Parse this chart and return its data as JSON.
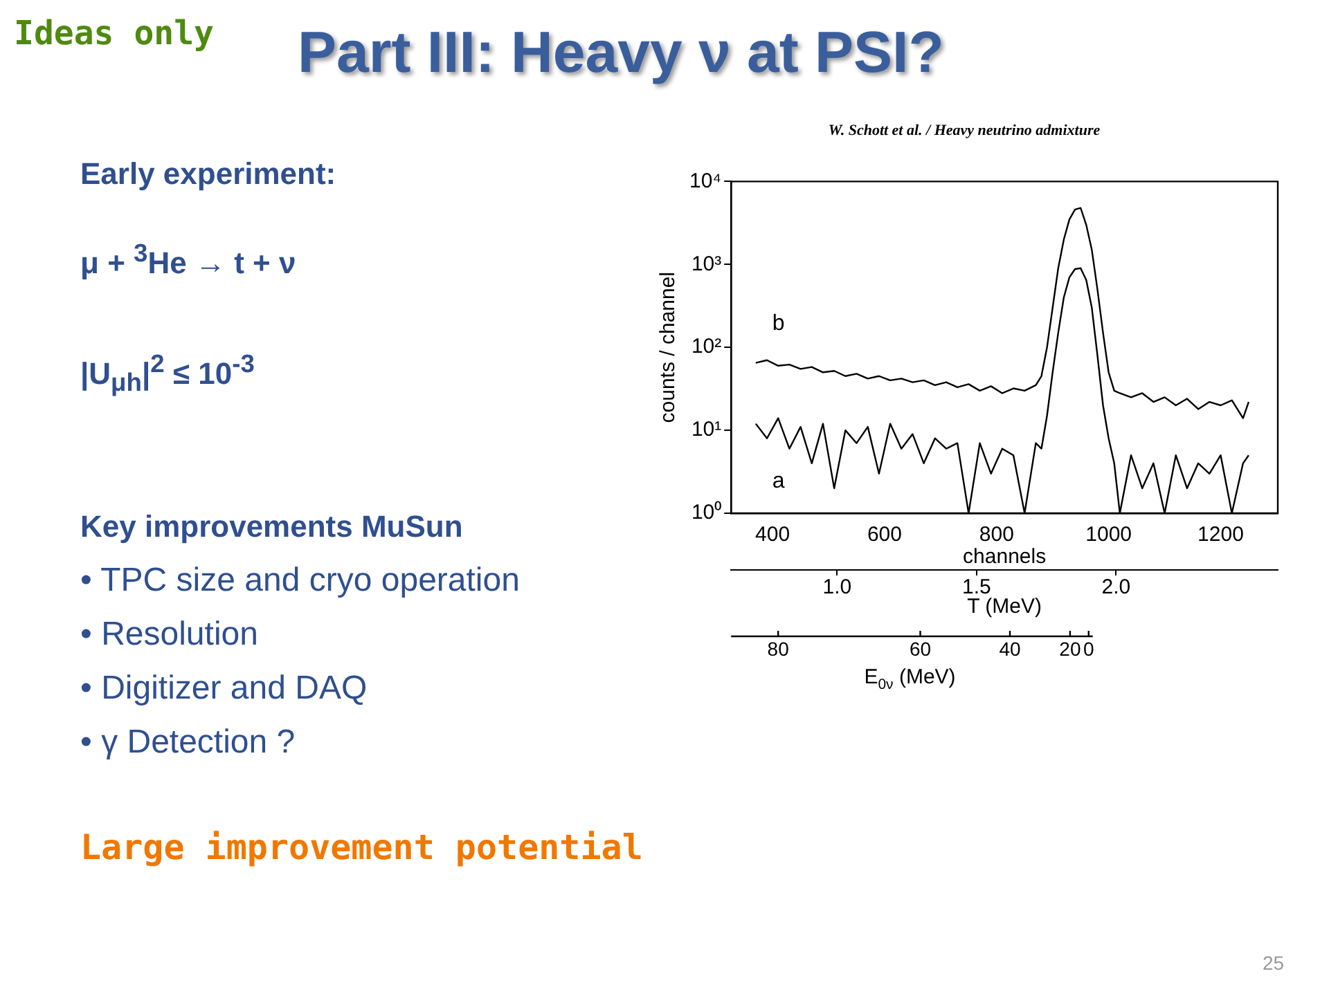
{
  "chart_data": {
    "type": "line",
    "title": "Part III: Heavy ν at PSI?",
    "subtitle": "W. Schott et al. / Heavy neutrino admixture",
    "xlabel": "channels",
    "ylabel": "counts / channel",
    "x2label": "T (MeV)",
    "x": [
      370,
      390,
      410,
      430,
      450,
      470,
      490,
      510,
      530,
      550,
      570,
      590,
      610,
      630,
      650,
      670,
      690,
      710,
      730,
      750,
      770,
      790,
      810,
      830,
      850,
      870,
      880,
      890,
      900,
      910,
      920,
      930,
      940,
      950,
      960,
      970,
      980,
      990,
      1000,
      1010,
      1020,
      1040,
      1060,
      1080,
      1100,
      1120,
      1140,
      1160,
      1180,
      1200,
      1220,
      1240,
      1250
    ],
    "series": [
      {
        "name": "b",
        "color": "#000000",
        "values": [
          65,
          70,
          60,
          62,
          55,
          58,
          50,
          52,
          45,
          48,
          42,
          45,
          40,
          42,
          38,
          40,
          35,
          38,
          33,
          36,
          30,
          34,
          28,
          32,
          30,
          35,
          45,
          100,
          300,
          900,
          2000,
          3500,
          4600,
          4800,
          3000,
          1500,
          500,
          150,
          50,
          30,
          28,
          25,
          28,
          22,
          25,
          20,
          24,
          18,
          22,
          20,
          23,
          14,
          22
        ]
      },
      {
        "name": "a",
        "color": "#000000",
        "values": [
          12,
          8,
          14,
          6,
          11,
          4,
          12,
          2,
          10,
          7,
          11,
          3,
          12,
          6,
          9,
          4,
          8,
          6,
          7,
          1,
          7,
          3,
          6,
          5,
          1,
          7,
          6,
          15,
          50,
          150,
          400,
          700,
          880,
          900,
          650,
          300,
          80,
          20,
          8,
          4,
          1,
          5,
          2,
          4,
          1,
          5,
          2,
          4,
          3,
          5,
          1,
          4,
          5
        ]
      }
    ],
    "xlim": [
      326,
      1302
    ],
    "xticks": [
      400,
      600,
      800,
      1000,
      1200
    ],
    "x2lim": [
      0.62,
      2.58
    ],
    "x2ticks": [
      {
        "value": 1,
        "label": "1.0"
      },
      1.5,
      {
        "value": 2,
        "label": "2.0"
      }
    ],
    "ylim": [
      1,
      10000
    ],
    "yticks": [
      {
        "value": 1,
        "label": "10⁰"
      },
      {
        "value": 10,
        "label": "10¹"
      },
      {
        "value": 100,
        "label": "10²"
      },
      {
        "value": 1000,
        "label": "10³"
      },
      {
        "value": 10000,
        "label": "10⁴"
      }
    ],
    "log": "y",
    "grid": false,
    "legend": false,
    "marker": "none",
    "line_style": "solid",
    "annotations": [
      "Ideas only",
      "Early experiment:",
      "μ + $^{3}$He → t + ν",
      "|U$_{μh}$|$^{2}$ ≤ 10$^{-3}$",
      "Key improvements MuSun",
      "• TPC size and cryo operation",
      "• Resolution",
      "• Digitizer and DAQ",
      "• γ Detection ?",
      "Large improvement potential",
      "25",
      "E$_{0ν}$ (MeV)",
      "80",
      "60",
      "40",
      "20",
      "0"
    ]
  }
}
